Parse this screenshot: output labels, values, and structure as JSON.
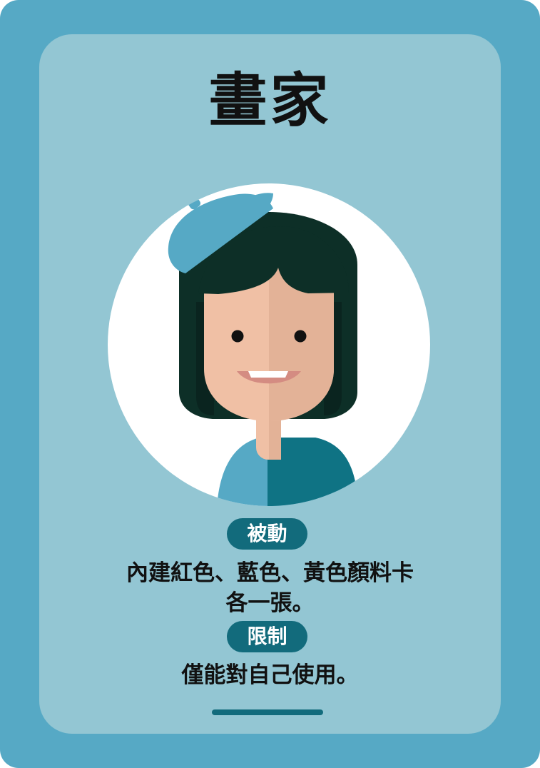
{
  "card": {
    "title": "畫家",
    "passive": {
      "label": "被動",
      "lines": [
        "內建紅色、藍色、黃色顏料卡",
        "各一張。"
      ]
    },
    "limit": {
      "label": "限制",
      "text": "僅能對自己使用。"
    },
    "portrait_icon": "painter-avatar-icon"
  },
  "colors": {
    "outer": "#56a9c5",
    "inner": "#93c6d3",
    "badge": "#126b7c",
    "beret": "#56a9c5",
    "hair": "#0d2f27"
  }
}
